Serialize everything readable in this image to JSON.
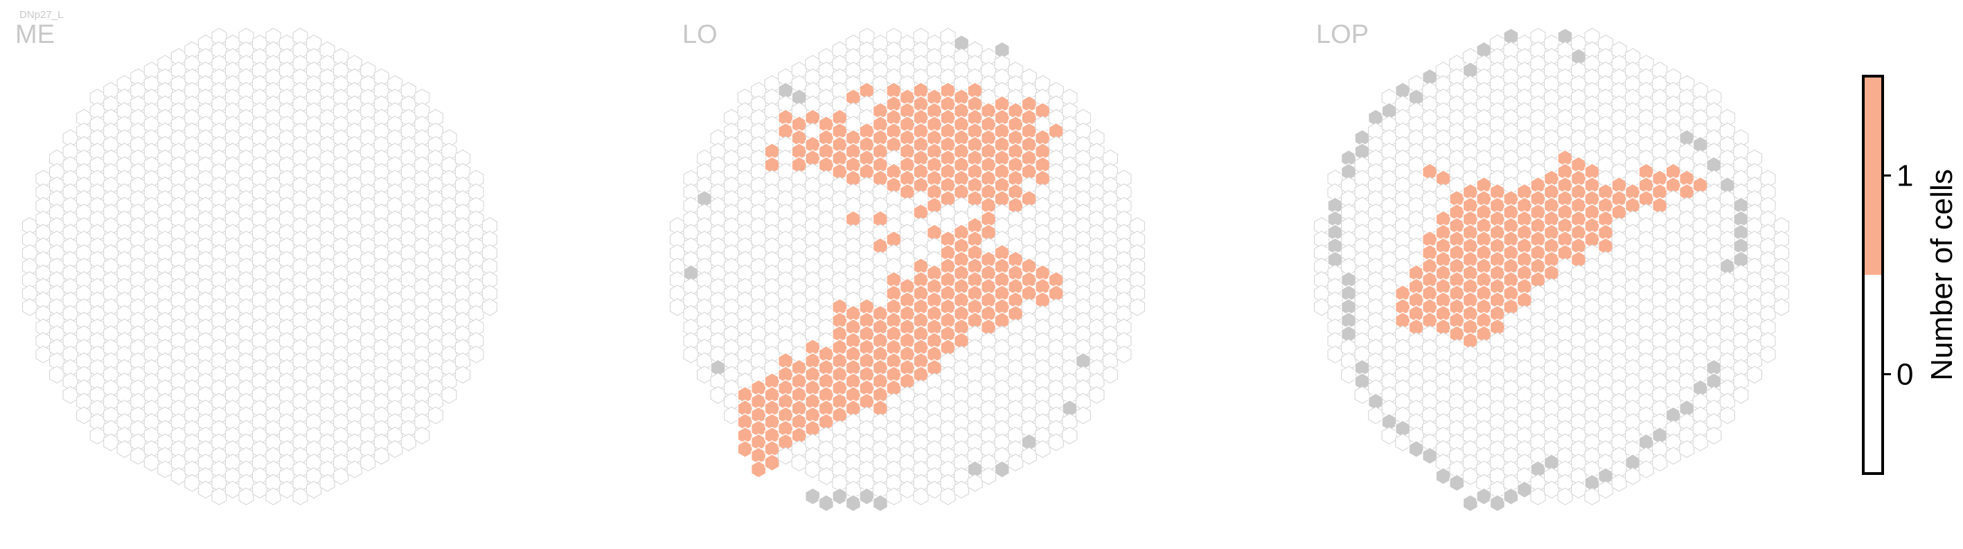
{
  "figure_label": "DNp27_L",
  "colors": {
    "empty_stroke": "#d6d6d6",
    "empty_fill": "#ffffff",
    "one_cell": "#f9ad8f",
    "outside": "#c8c8c8",
    "label": "#c8c8c8",
    "colorbar_frame": "#000000"
  },
  "chart_data": [
    {
      "type": "heatmap",
      "panel": "ME",
      "title": "ME",
      "grid": "hexagonal",
      "column_count": 35,
      "row_range": [
        0,
        35
      ],
      "columns_by_one_cell_rows": {},
      "outside_cells": []
    },
    {
      "type": "heatmap",
      "panel": "LO",
      "title": "LO",
      "grid": "hexagonal",
      "column_count": 35,
      "row_range": [
        0,
        35
      ],
      "columns_by_one_cell_rows": {
        "4": [
          13,
          14,
          16,
          17,
          18,
          19,
          20,
          21,
          22
        ],
        "5": [
          15,
          16,
          17,
          18,
          19,
          20,
          21,
          22,
          23,
          24,
          25,
          26,
          27
        ],
        "6": [
          8,
          9,
          10,
          11,
          12,
          15,
          16,
          17,
          18,
          19,
          20,
          21,
          22,
          23,
          24,
          25,
          26
        ],
        "7": [
          8,
          9,
          11,
          12,
          13,
          14,
          15,
          16,
          17,
          18,
          19,
          20,
          21,
          22,
          23,
          24,
          25,
          26,
          27,
          28
        ],
        "8": [
          7,
          9,
          10,
          11,
          12,
          13,
          14,
          15,
          16,
          17,
          18,
          19,
          20,
          21,
          22,
          23,
          24,
          25,
          26,
          27
        ],
        "9": [
          7,
          9,
          10,
          11,
          12,
          13,
          14,
          15,
          17,
          18,
          19,
          20,
          21,
          22,
          23,
          24,
          25,
          26,
          27
        ],
        "10": [
          12,
          13,
          14,
          15,
          16,
          17,
          18,
          19,
          20,
          21,
          22,
          23,
          24,
          25,
          26,
          27
        ],
        "11": [
          16,
          17,
          18,
          19,
          20,
          21,
          22,
          23,
          24,
          25
        ],
        "12": [
          19,
          20,
          22,
          23,
          24,
          25,
          26
        ],
        "13": [
          13,
          15,
          18,
          23
        ],
        "14": [
          19,
          21,
          22,
          23
        ],
        "15": [
          15,
          16,
          20,
          21,
          22
        ],
        "16": [
          20,
          21,
          22,
          23,
          24,
          25
        ],
        "17": [
          18,
          19,
          20,
          21,
          22,
          23,
          24,
          25,
          26,
          27
        ],
        "18": [
          16,
          17,
          18,
          19,
          20,
          21,
          22,
          23,
          24,
          25,
          26,
          27,
          28
        ],
        "19": [
          16,
          17,
          18,
          19,
          20,
          21,
          22,
          23,
          24,
          25,
          26,
          27,
          28
        ],
        "20": [
          12,
          13,
          14,
          15,
          16,
          17,
          18,
          19,
          20,
          21,
          22,
          23,
          24,
          25
        ],
        "21": [
          12,
          13,
          14,
          15,
          16,
          17,
          18,
          19,
          20,
          21,
          22,
          23,
          24
        ],
        "22": [
          12,
          13,
          14,
          15,
          16,
          17,
          18,
          19,
          20,
          21
        ],
        "23": [
          10,
          11,
          12,
          13,
          14,
          15,
          16,
          17,
          18,
          19,
          20
        ],
        "24": [
          8,
          9,
          10,
          11,
          12,
          13,
          14,
          15,
          16,
          17,
          18,
          19
        ],
        "25": [
          7,
          8,
          9,
          10,
          11,
          12,
          13,
          14,
          15,
          16,
          17,
          18
        ],
        "26": [
          5,
          6,
          7,
          8,
          9,
          10,
          11,
          12,
          13,
          14,
          15,
          16
        ],
        "27": [
          5,
          6,
          7,
          8,
          9,
          10,
          11,
          12,
          13,
          14,
          15
        ],
        "28": [
          5,
          6,
          7,
          8,
          9,
          10,
          11,
          12
        ],
        "29": [
          5,
          6,
          7,
          8,
          9,
          10
        ],
        "30": [
          5,
          6,
          7,
          8
        ],
        "31": [
          6,
          7
        ],
        "32": [
          6
        ]
      },
      "outside_cells": [
        [
          21,
          0
        ],
        [
          24,
          1
        ],
        [
          8,
          4
        ],
        [
          9,
          4
        ],
        [
          2,
          12
        ],
        [
          1,
          17
        ],
        [
          3,
          24
        ],
        [
          30,
          24
        ],
        [
          29,
          27
        ],
        [
          26,
          30
        ],
        [
          22,
          32
        ],
        [
          24,
          32
        ],
        [
          10,
          34
        ],
        [
          11,
          34
        ],
        [
          12,
          34
        ],
        [
          13,
          34
        ],
        [
          14,
          34
        ],
        [
          15,
          34
        ]
      ]
    },
    {
      "type": "heatmap",
      "panel": "LOP",
      "title": "LOP",
      "grid": "hexagonal",
      "column_count": 35,
      "row_range": [
        0,
        35
      ],
      "columns_by_one_cell_rows": {
        "9": [
          18,
          19
        ],
        "10": [
          8,
          9,
          17,
          18,
          19,
          20,
          24,
          25,
          26,
          27
        ],
        "11": [
          11,
          12,
          13,
          15,
          16,
          17,
          18,
          19,
          20,
          21,
          22,
          23,
          24,
          25,
          26,
          27,
          28
        ],
        "12": [
          10,
          11,
          12,
          13,
          14,
          15,
          16,
          17,
          18,
          19,
          20,
          21,
          22,
          23,
          24,
          25
        ],
        "13": [
          9,
          10,
          11,
          12,
          13,
          14,
          15,
          16,
          17,
          18,
          19,
          20,
          21,
          22
        ],
        "14": [
          9,
          10,
          11,
          12,
          13,
          14,
          15,
          16,
          17,
          18,
          19,
          20,
          21
        ],
        "15": [
          8,
          9,
          10,
          11,
          12,
          13,
          14,
          15,
          16,
          17,
          18,
          19,
          20,
          21
        ],
        "16": [
          8,
          9,
          10,
          11,
          12,
          13,
          14,
          15,
          16,
          17,
          18,
          19
        ],
        "17": [
          7,
          8,
          9,
          10,
          11,
          12,
          13,
          14,
          15,
          16,
          17
        ],
        "18": [
          7,
          8,
          9,
          10,
          11,
          12,
          13,
          14,
          15,
          16
        ],
        "19": [
          6,
          7,
          8,
          9,
          10,
          11,
          12,
          13,
          14,
          15
        ],
        "20": [
          6,
          7,
          8,
          9,
          10,
          11,
          12,
          13,
          14
        ],
        "21": [
          6,
          7,
          8,
          9,
          10,
          11,
          12,
          13
        ],
        "22": [
          10,
          11,
          12
        ]
      },
      "outside_cells": [
        [
          14,
          0
        ],
        [
          18,
          0
        ],
        [
          12,
          1
        ],
        [
          19,
          1
        ],
        [
          11,
          2
        ],
        [
          8,
          3
        ],
        [
          6,
          4
        ],
        [
          4,
          6
        ],
        [
          5,
          5
        ],
        [
          7,
          4
        ],
        [
          3,
          7
        ],
        [
          3,
          8
        ],
        [
          2,
          9
        ],
        [
          2,
          10
        ],
        [
          1,
          12
        ],
        [
          1,
          13
        ],
        [
          1,
          14
        ],
        [
          1,
          15
        ],
        [
          1,
          16
        ],
        [
          2,
          18
        ],
        [
          2,
          19
        ],
        [
          2,
          20
        ],
        [
          2,
          21
        ],
        [
          2,
          22
        ],
        [
          3,
          24
        ],
        [
          3,
          25
        ],
        [
          4,
          27
        ],
        [
          5,
          28
        ],
        [
          6,
          29
        ],
        [
          7,
          30
        ],
        [
          8,
          31
        ],
        [
          9,
          32
        ],
        [
          10,
          33
        ],
        [
          11,
          34
        ],
        [
          12,
          34
        ],
        [
          13,
          34
        ],
        [
          14,
          34
        ],
        [
          15,
          33
        ],
        [
          16,
          32
        ],
        [
          17,
          31
        ],
        [
          27,
          7
        ],
        [
          28,
          8
        ],
        [
          29,
          9
        ],
        [
          30,
          11
        ],
        [
          31,
          12
        ],
        [
          31,
          13
        ],
        [
          31,
          14
        ],
        [
          31,
          15
        ],
        [
          31,
          16
        ],
        [
          30,
          17
        ],
        [
          29,
          24
        ],
        [
          29,
          25
        ],
        [
          28,
          26
        ],
        [
          27,
          27
        ],
        [
          26,
          28
        ],
        [
          25,
          29
        ],
        [
          24,
          30
        ],
        [
          23,
          31
        ],
        [
          21,
          32
        ],
        [
          20,
          33
        ]
      ]
    }
  ],
  "colorbar": {
    "label": "Number of cells",
    "ticks": [
      {
        "value": 0,
        "label": "0"
      },
      {
        "value": 1,
        "label": "1"
      }
    ],
    "range": [
      -0.5,
      1.5
    ],
    "bins": [
      {
        "from": -0.5,
        "to": 0.5,
        "color": "#ffffff"
      },
      {
        "from": 0.5,
        "to": 1.5,
        "color": "#f9ad8f"
      }
    ]
  }
}
